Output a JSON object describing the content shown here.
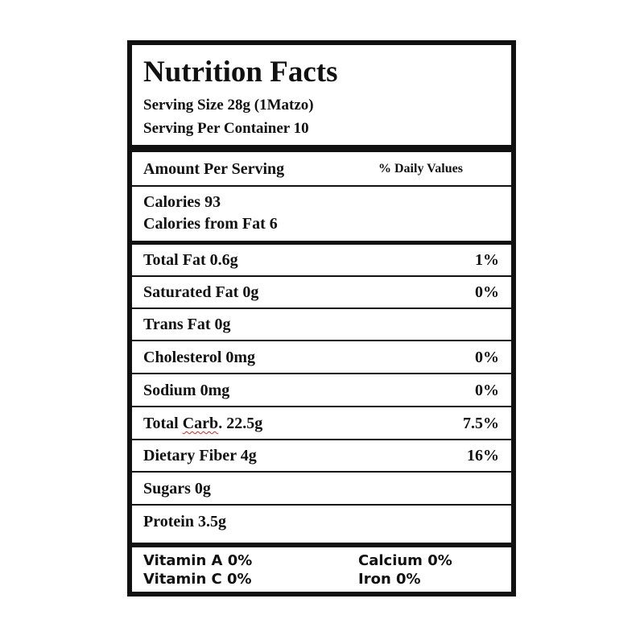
{
  "label": {
    "title": "Nutrition Facts",
    "serving_size": "Serving Size 28g (1Matzo)",
    "servings_per_container": "Serving Per Container 10",
    "amount_per_serving": "Amount Per Serving",
    "daily_values_header": "% Daily Values",
    "calories": "Calories 93",
    "calories_from_fat": "Calories from Fat 6",
    "nutrients": [
      {
        "name": "Total Fat 0.6g",
        "dv": "1%"
      },
      {
        "name": "Saturated Fat 0g",
        "dv": "0%"
      },
      {
        "name": "Trans Fat 0g",
        "dv": ""
      },
      {
        "name": "Cholesterol 0mg",
        "dv": "0%"
      },
      {
        "name": "Sodium 0mg",
        "dv": "0%"
      },
      {
        "name_pre": "Total ",
        "name_squiggle": "Carb",
        "name_post": ". 22.5g",
        "dv": "7.5%"
      },
      {
        "name": "Dietary Fiber 4g",
        "dv": "16%"
      },
      {
        "name": "Sugars 0g",
        "dv": ""
      },
      {
        "name": "Protein 3.5g",
        "dv": ""
      }
    ],
    "vitamins": {
      "vitamin_a": "Vitamin A 0%",
      "vitamin_c": "Vitamin C 0%",
      "calcium": "Calcium 0%",
      "iron": "Iron 0%"
    }
  }
}
